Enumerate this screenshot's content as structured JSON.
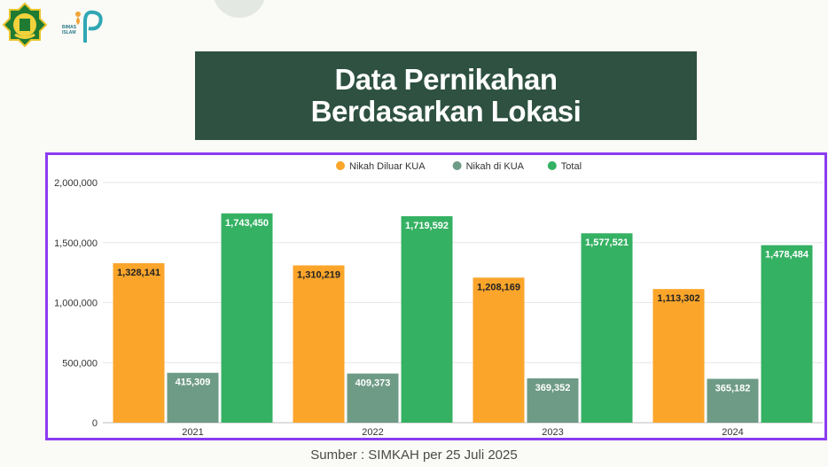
{
  "header": {
    "title_line1": "Data Pernikahan",
    "title_line2": "Berdasarkan Lokasi",
    "logo_text": "BIMAS ISLAM"
  },
  "chart_data": {
    "type": "bar",
    "categories": [
      "2021",
      "2022",
      "2023",
      "2024"
    ],
    "series": [
      {
        "name": "Nikah Diluar KUA",
        "color": "#fba52b",
        "values": [
          1328141,
          1310219,
          1208169,
          1113302
        ],
        "labels": [
          "1,328,141",
          "1,310,219",
          "1,208,169",
          "1,113,302"
        ]
      },
      {
        "name": "Nikah di KUA",
        "color": "#6e9b86",
        "values": [
          415309,
          409373,
          369352,
          365182
        ],
        "labels": [
          "415,309",
          "409,373",
          "369,352",
          "365,182"
        ]
      },
      {
        "name": "Total",
        "color": "#35b163",
        "values": [
          1743450,
          1719592,
          1577521,
          1478484
        ],
        "labels": [
          "1,743,450",
          "1,719,592",
          "1,577,521",
          "1,478,484"
        ]
      }
    ],
    "yticks": [
      0,
      500000,
      1000000,
      1500000,
      2000000
    ],
    "ytick_labels": [
      "0",
      "500,000",
      "1,000,000",
      "1,500,000",
      "2,000,000"
    ],
    "ylim": [
      0,
      2000000
    ],
    "grid": true,
    "legend_position": "top-center"
  },
  "footer": {
    "source": "Sumber :  SIMKAH per 25 Juli 2025"
  }
}
